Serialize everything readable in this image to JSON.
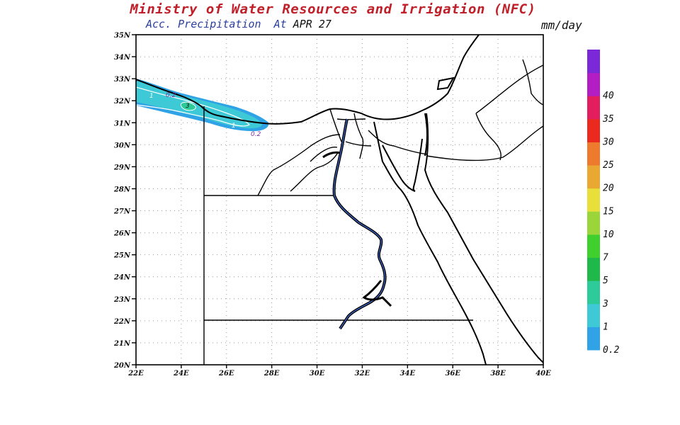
{
  "header": {
    "title": "Ministry of Water Resources and Irrigation (NFC)",
    "subtitle_prefix": "Acc. Precipitation  At ",
    "subtitle_date": "APR 27",
    "units": "mm/day"
  },
  "axes": {
    "lat_labels": [
      "20N",
      "21N",
      "22N",
      "23N",
      "24N",
      "25N",
      "26N",
      "27N",
      "28N",
      "29N",
      "30N",
      "31N",
      "32N",
      "33N",
      "34N",
      "35N"
    ],
    "lon_labels": [
      "22E",
      "24E",
      "26E",
      "28E",
      "30E",
      "32E",
      "34E",
      "36E",
      "38E",
      "40E"
    ]
  },
  "colorbar": {
    "levels": [
      "0.2",
      "1",
      "3",
      "5",
      "7",
      "10",
      "15",
      "20",
      "25",
      "30",
      "35",
      "40"
    ],
    "colors": [
      "#2fa3e6",
      "#3ec9d6",
      "#2ecb9a",
      "#1fb94a",
      "#3fd02e",
      "#9ad53a",
      "#e8df3a",
      "#e8a832",
      "#ee7a2e",
      "#ea2a1e",
      "#e21e5e",
      "#b21ec4",
      "#7a28d8"
    ]
  },
  "contour_labels": [
    "1",
    "0.2",
    "3",
    "1",
    "0.2"
  ]
}
